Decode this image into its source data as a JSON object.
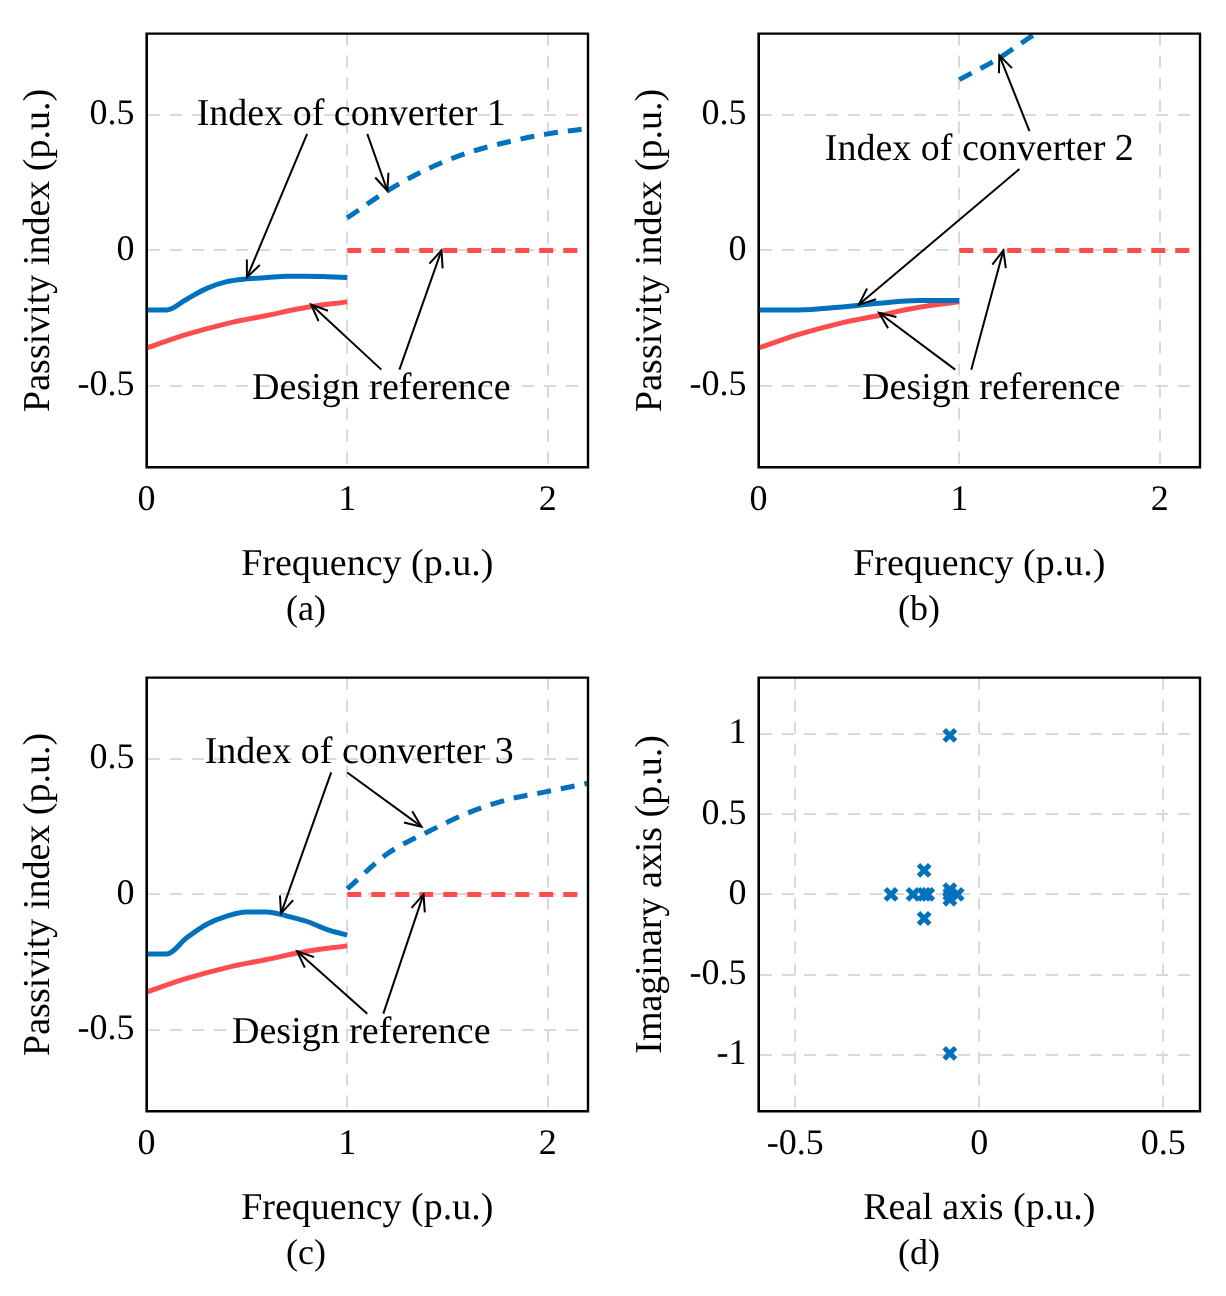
{
  "chart_data": [
    {
      "type": "line",
      "xlabel": "Frequency (p.u.)",
      "ylabel": "Passivity index (p.u.)",
      "xlim": [
        0,
        2.2
      ],
      "ylim": [
        -0.8,
        0.8
      ],
      "xticks": [
        0,
        1,
        2
      ],
      "yticks": [
        -0.5,
        0,
        0.5
      ],
      "grid": true,
      "legend": false,
      "marker": "none",
      "annotations": [
        {
          "text": "Index of converter 1",
          "x": 0.5,
          "y": -0.1
        },
        {
          "text": "Design reference",
          "x": 1.47,
          "y": 0
        },
        "(a)"
      ],
      "series": [
        {
          "color": "#0072bd",
          "line_style": "solid",
          "x": [
            0,
            0.1,
            0.2,
            0.3,
            0.4,
            0.5,
            0.6,
            0.7,
            0.8,
            0.9,
            1.0
          ],
          "values": [
            -0.22,
            -0.22,
            -0.18,
            -0.14,
            -0.115,
            -0.105,
            -0.1,
            -0.095,
            -0.095,
            -0.097,
            -0.1
          ]
        },
        {
          "color": "#0072bd",
          "line_style": "dashed",
          "x": [
            1.0,
            1.2,
            1.4,
            1.6,
            1.8,
            2.0,
            2.2
          ],
          "values": [
            0.12,
            0.22,
            0.3,
            0.36,
            0.4,
            0.43,
            0.45
          ]
        },
        {
          "color": "#ff4d4d",
          "line_style": "solid",
          "x": [
            0,
            0.2,
            0.4,
            0.6,
            0.8,
            1.0
          ],
          "values": [
            -0.36,
            -0.31,
            -0.27,
            -0.24,
            -0.21,
            -0.19
          ]
        },
        {
          "color": "#ff4d4d",
          "line_style": "dashed",
          "x": [
            1.0,
            2.2
          ],
          "values": [
            0,
            0
          ]
        }
      ]
    },
    {
      "type": "line",
      "xlabel": "Frequency (p.u.)",
      "ylabel": "Passivity index (p.u.)",
      "xlim": [
        0,
        2.2
      ],
      "ylim": [
        -0.8,
        0.8
      ],
      "xticks": [
        0,
        1,
        2
      ],
      "yticks": [
        -0.5,
        0,
        0.5
      ],
      "grid": true,
      "legend": false,
      "marker": "none",
      "annotations": [
        {
          "text": "Index of converter 2",
          "x": 0.5,
          "y": -0.2
        },
        {
          "text": "Design reference",
          "x": 1.22,
          "y": 0
        },
        "(b)"
      ],
      "series": [
        {
          "color": "#0072bd",
          "line_style": "solid",
          "x": [
            0,
            0.2,
            0.4,
            0.6,
            0.8,
            1.0
          ],
          "values": [
            -0.22,
            -0.22,
            -0.21,
            -0.195,
            -0.185,
            -0.185
          ]
        },
        {
          "color": "#0072bd",
          "line_style": "dashed",
          "x": [
            1.0,
            1.2,
            1.3,
            1.38
          ],
          "values": [
            0.63,
            0.71,
            0.76,
            0.8
          ]
        },
        {
          "color": "#ff4d4d",
          "line_style": "solid",
          "x": [
            0,
            0.2,
            0.4,
            0.6,
            0.8,
            1.0
          ],
          "values": [
            -0.36,
            -0.31,
            -0.27,
            -0.24,
            -0.21,
            -0.19
          ]
        },
        {
          "color": "#ff4d4d",
          "line_style": "dashed",
          "x": [
            1.0,
            2.2
          ],
          "values": [
            0,
            0
          ]
        }
      ]
    },
    {
      "type": "line",
      "xlabel": "Frequency (p.u.)",
      "ylabel": "Passivity index (p.u.)",
      "xlim": [
        0,
        2.2
      ],
      "ylim": [
        -0.8,
        0.8
      ],
      "xticks": [
        0,
        1,
        2
      ],
      "yticks": [
        -0.5,
        0,
        0.5
      ],
      "grid": true,
      "legend": false,
      "marker": "none",
      "annotations": [
        {
          "text": "Index of converter 3",
          "x": 0.67,
          "y": -0.07
        },
        {
          "text": "Design reference",
          "x": 1.38,
          "y": 0
        },
        "(c)"
      ],
      "series": [
        {
          "color": "#0072bd",
          "line_style": "solid",
          "x": [
            0,
            0.1,
            0.2,
            0.3,
            0.4,
            0.5,
            0.6,
            0.7,
            0.8,
            0.9,
            1.0
          ],
          "values": [
            -0.22,
            -0.22,
            -0.16,
            -0.11,
            -0.08,
            -0.065,
            -0.065,
            -0.08,
            -0.1,
            -0.13,
            -0.15
          ]
        },
        {
          "color": "#0072bd",
          "line_style": "dashed",
          "x": [
            1.0,
            1.2,
            1.4,
            1.6,
            1.8,
            2.0,
            2.2
          ],
          "values": [
            0.02,
            0.15,
            0.23,
            0.3,
            0.35,
            0.38,
            0.41
          ]
        },
        {
          "color": "#ff4d4d",
          "line_style": "solid",
          "x": [
            0,
            0.2,
            0.4,
            0.6,
            0.8,
            1.0
          ],
          "values": [
            -0.36,
            -0.31,
            -0.27,
            -0.24,
            -0.21,
            -0.19
          ]
        },
        {
          "color": "#ff4d4d",
          "line_style": "dashed",
          "x": [
            1.0,
            2.2
          ],
          "values": [
            0,
            0
          ]
        }
      ]
    },
    {
      "type": "scatter",
      "xlabel": "Real axis (p.u.)",
      "ylabel": "Imaginary axis (p.u.)",
      "xlim": [
        -0.6,
        0.6
      ],
      "ylim": [
        -1.35,
        1.35
      ],
      "xticks": [
        -0.5,
        0,
        0.5
      ],
      "yticks": [
        -1,
        -0.5,
        0,
        0.5,
        1
      ],
      "grid": true,
      "legend": false,
      "marker": "cross",
      "annotations": [
        "(d)"
      ],
      "series": [
        {
          "color": "#0072bd",
          "x": [
            -0.08,
            -0.08,
            -0.24,
            -0.18,
            -0.15,
            -0.14,
            -0.15,
            -0.15,
            -0.08,
            -0.08,
            -0.08,
            -0.06
          ],
          "values": [
            0.99,
            -0.99,
            0,
            0,
            0,
            0,
            0.15,
            -0.15,
            0.03,
            -0.03,
            0,
            0
          ]
        }
      ]
    }
  ]
}
